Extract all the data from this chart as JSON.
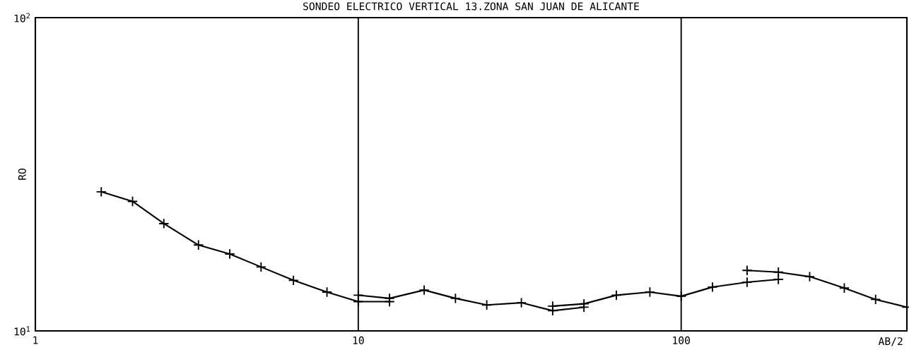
{
  "chart_data": {
    "type": "line",
    "title": "SONDEO ELECTRICO VERTICAL 13.ZONA SAN JUAN DE ALICANTE",
    "xlabel": "AB/2",
    "ylabel": "RO",
    "log": "xy",
    "xlim": [
      1,
      500
    ],
    "ylim": [
      10,
      100
    ],
    "xticks": [
      1,
      10,
      100
    ],
    "yticks": [
      {
        "value": 10,
        "label": "10$^{1}$"
      },
      {
        "value": 100,
        "label": "10$^{2}$"
      }
    ],
    "grid": "x",
    "marker": "cross",
    "line_style": "solid",
    "series": [
      {
        "color": "#000000",
        "x": [
          1.6,
          2,
          2.5,
          3.2,
          4,
          5,
          6.3,
          8,
          10,
          12.5
        ],
        "values": [
          27.8,
          25.9,
          22.0,
          18.8,
          17.6,
          16.0,
          14.5,
          13.3,
          12.4,
          12.4
        ]
      },
      {
        "color": "#000000",
        "x": [
          10,
          12.5,
          16,
          20,
          25,
          32,
          40,
          50
        ],
        "values": [
          13.0,
          12.7,
          13.5,
          12.7,
          12.1,
          12.3,
          11.6,
          11.9
        ]
      },
      {
        "color": "#000000",
        "x": [
          40,
          50,
          63,
          80,
          100,
          125,
          160,
          200
        ],
        "values": [
          12.0,
          12.2,
          13.0,
          13.3,
          12.9,
          13.8,
          14.3,
          14.6
        ]
      },
      {
        "color": "#000000",
        "x": [
          160,
          200,
          250,
          320,
          400,
          500
        ],
        "values": [
          15.6,
          15.4,
          14.9,
          13.7,
          12.6,
          11.9
        ]
      }
    ]
  }
}
